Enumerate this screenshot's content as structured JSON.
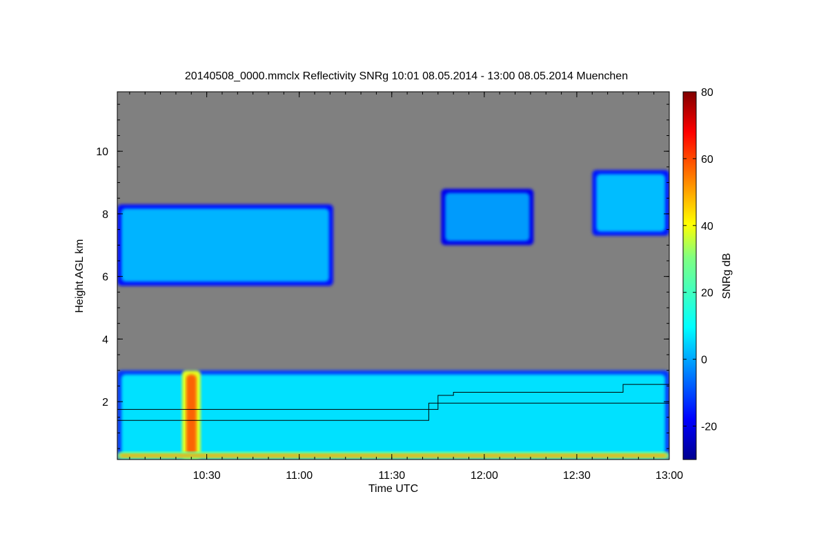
{
  "chart_data": {
    "type": "heatmap",
    "title": "20140508_0000.mmclx Reflectivity SNRg   10:01 08.05.2014 - 13:00 08.05.2014 Muenchen",
    "xlabel": "Time UTC",
    "ylabel": "Height AGL km",
    "colorbar_label": "SNRg dB",
    "xlim": [
      "10:01",
      "13:00"
    ],
    "ylim": [
      0.15,
      11.9
    ],
    "clim": [
      -30,
      80
    ],
    "background_color": "#808080",
    "colormap": "jet",
    "x_ticks": [
      "10:30",
      "11:00",
      "11:30",
      "12:00",
      "12:30",
      "13:00"
    ],
    "y_ticks": [
      2,
      4,
      6,
      8,
      10
    ],
    "colorbar_ticks": [
      -20,
      0,
      20,
      40,
      60,
      80
    ],
    "echo_regions": [
      {
        "name": "upper cloud",
        "t_start": "10:01",
        "t_end": "11:11",
        "base_km": 5.7,
        "top_km": 8.3,
        "snr_db": 5
      },
      {
        "name": "upper cloud",
        "t_start": "11:46",
        "t_end": "12:16",
        "base_km": 7.0,
        "top_km": 8.8,
        "snr_db": 2
      },
      {
        "name": "upper cloud",
        "t_start": "12:35",
        "t_end": "13:00",
        "base_km": 7.3,
        "top_km": 9.4,
        "snr_db": 6
      },
      {
        "name": "boundary layer",
        "t_start": "10:01",
        "t_end": "13:00",
        "base_km": 0.15,
        "top_km": 3.0,
        "snr_db": 10
      },
      {
        "name": "precipitation shaft",
        "t_start": "10:22",
        "t_end": "10:28",
        "base_km": 0.15,
        "top_km": 3.0,
        "snr_db": 60
      },
      {
        "name": "ground clutter",
        "t_start": "10:01",
        "t_end": "13:00",
        "base_km": 0.15,
        "top_km": 0.4,
        "snr_db": 50
      }
    ],
    "boundary_lines": [
      {
        "name": "line A",
        "points": [
          [
            "10:01",
            1.75
          ],
          [
            "11:45",
            1.75
          ],
          [
            "11:45",
            2.2
          ],
          [
            "11:50",
            2.2
          ],
          [
            "11:50",
            2.3
          ],
          [
            "12:45",
            2.3
          ],
          [
            "12:45",
            2.55
          ],
          [
            "13:00",
            2.55
          ]
        ]
      },
      {
        "name": "line B",
        "points": [
          [
            "10:01",
            1.4
          ],
          [
            "11:42",
            1.4
          ],
          [
            "11:42",
            1.95
          ],
          [
            "13:00",
            1.95
          ]
        ]
      }
    ]
  }
}
